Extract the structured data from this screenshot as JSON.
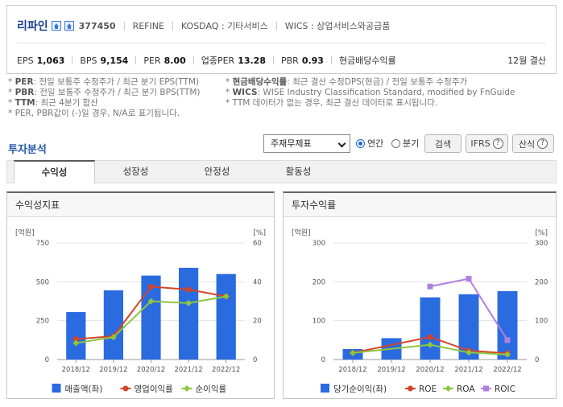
{
  "company": {
    "name": "리파인",
    "code": "377450",
    "name_en": "REFINE",
    "market": "KOSDAQ : 기타서비스",
    "wics": "WICS : 상업서비스와공급품"
  },
  "stats": [
    {
      "label": "EPS",
      "value": "1,063"
    },
    {
      "label": "BPS",
      "value": "9,154"
    },
    {
      "label": "PER",
      "value": "8.00"
    },
    {
      "label": "업종PER",
      "value": "13.28"
    },
    {
      "label": "PBR",
      "value": "0.93"
    },
    {
      "label": "현금배당수익률",
      "value": ""
    }
  ],
  "settlement": "12월 결산",
  "notes": {
    "left": [
      {
        "key": "PER",
        "text": ": 전일 보통주 수정주가 / 최근 분기 EPS(TTM)"
      },
      {
        "key": "PBR",
        "text": ": 전일 보통주 수정주가 / 최근 분기 BPS(TTM)"
      },
      {
        "key": "TTM",
        "text": ": 최근 4분기 합산"
      },
      {
        "key": "",
        "text": "PER, PBR값이 (-)일 경우, N/A로 표기됩니다."
      }
    ],
    "right": [
      {
        "key": "현금배당수익률",
        "text": ": 최근 결산 수정DPS(현금) / 전일 보통주 수정주가"
      },
      {
        "key": "WICS",
        "text": ": WISE Industry Classification Standard, modified by FnGuide"
      },
      {
        "key": "",
        "text": "TTM 데이터가 없는 경우, 최근 결산 데이터로 표시됩니다."
      }
    ]
  },
  "section_title": "투자분석",
  "controls": {
    "select_value": "주재무제표",
    "radio_annual": "연간",
    "radio_quarter": "분기",
    "search": "검색",
    "ifrs": "IFRS",
    "formula": "산식",
    "qmark": "?"
  },
  "tabs": [
    "수익성",
    "성장성",
    "안정성",
    "활동성"
  ],
  "panels": {
    "left_title": "수익성지표",
    "right_title": "투자수익률"
  },
  "chart_data": [
    {
      "type": "bar",
      "title": "수익성지표",
      "left_unit": "[억원]",
      "right_unit": "[%]",
      "categories": [
        "2018/12",
        "2019/12",
        "2020/12",
        "2021/12",
        "2022/12"
      ],
      "left_ylim": [
        0,
        750
      ],
      "left_ticks": [
        0,
        250,
        500,
        750
      ],
      "right_ylim": [
        0,
        60
      ],
      "right_ticks": [
        0,
        20,
        40,
        60
      ],
      "bar_color": "#2b6be0",
      "bars": {
        "name": "매출액(좌)",
        "values": [
          305,
          445,
          540,
          590,
          550
        ]
      },
      "lines": [
        {
          "name": "영업이익률",
          "color": "#d4452a",
          "marker": "circle",
          "values": [
            10.5,
            12.0,
            37.5,
            36.0,
            32.5
          ]
        },
        {
          "name": "순이익률",
          "color": "#8dc63f",
          "marker": "diamond",
          "values": [
            8.5,
            11.5,
            30.0,
            29.0,
            32.5
          ]
        }
      ]
    },
    {
      "type": "bar",
      "title": "투자수익률",
      "left_unit": "[억원]",
      "right_unit": "[%]",
      "categories": [
        "2018/12",
        "2019/12",
        "2020/12",
        "2021/12",
        "2022/12"
      ],
      "left_ylim": [
        0,
        300
      ],
      "left_ticks": [
        0,
        100,
        200,
        300
      ],
      "right_ylim": [
        0,
        300
      ],
      "right_ticks": [
        0,
        100,
        200,
        300
      ],
      "bar_color": "#2b6be0",
      "bars": {
        "name": "당기순이익(좌)",
        "values": [
          27,
          55,
          160,
          168,
          176
        ]
      },
      "lines": [
        {
          "name": "ROE",
          "color": "#d4452a",
          "marker": "circle",
          "values": [
            17,
            null,
            58,
            23,
            16
          ]
        },
        {
          "name": "ROA",
          "color": "#8dc63f",
          "marker": "diamond",
          "values": [
            17,
            null,
            38,
            18,
            13
          ]
        },
        {
          "name": "ROIC",
          "color": "#b07fe0",
          "marker": "square",
          "values": [
            null,
            null,
            188,
            208,
            50
          ]
        }
      ]
    }
  ]
}
